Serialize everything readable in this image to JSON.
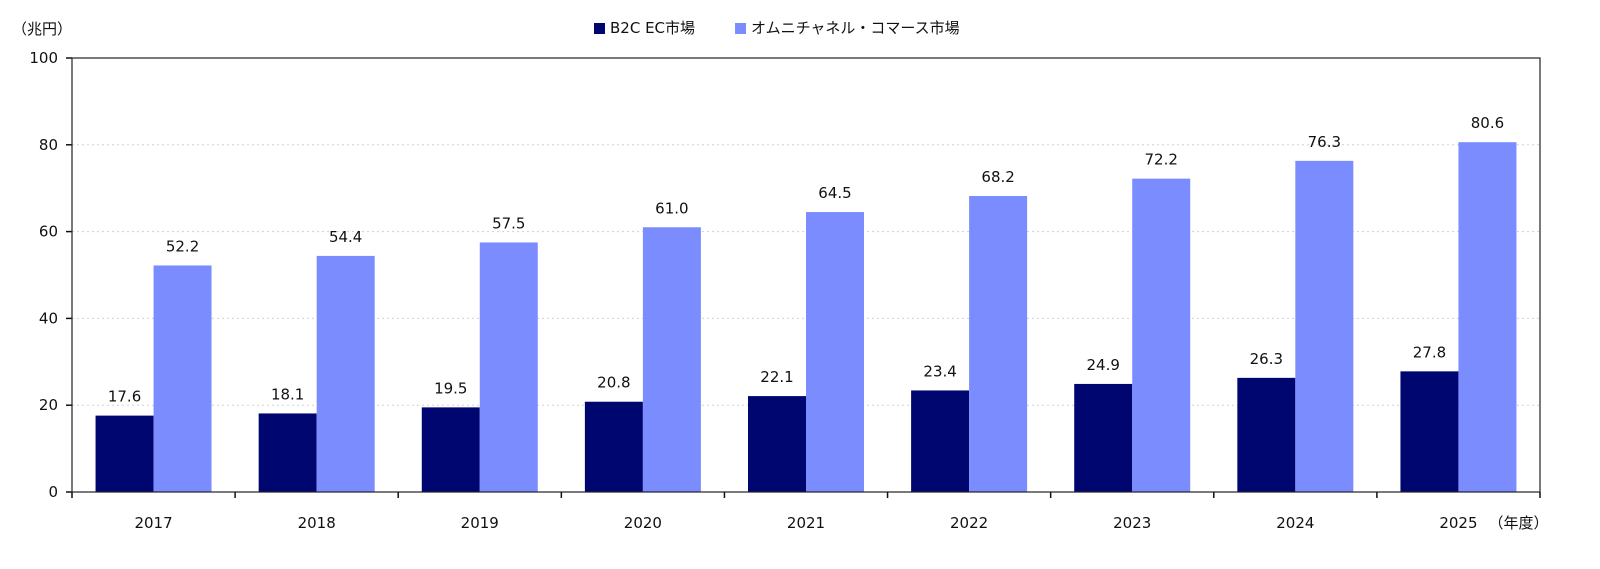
{
  "chart_data": {
    "type": "bar",
    "y_unit_label": "（兆円）",
    "x_unit_label": "（年度）",
    "categories": [
      "2017",
      "2018",
      "2019",
      "2020",
      "2021",
      "2022",
      "2023",
      "2024",
      "2025"
    ],
    "series": [
      {
        "name": "B2C EC市場",
        "color": "#00066f",
        "values": [
          17.6,
          18.1,
          19.5,
          20.8,
          22.1,
          23.4,
          24.9,
          26.3,
          27.8
        ]
      },
      {
        "name": "オムニチャネル・コマース市場",
        "color": "#7b8cff",
        "values": [
          52.2,
          54.4,
          57.5,
          61.0,
          64.5,
          68.2,
          72.2,
          76.3,
          80.6
        ]
      }
    ],
    "ylim": [
      0,
      100
    ],
    "yticks": [
      0,
      20,
      40,
      60,
      80,
      100
    ],
    "grid": true,
    "legend_position": "top-center"
  }
}
